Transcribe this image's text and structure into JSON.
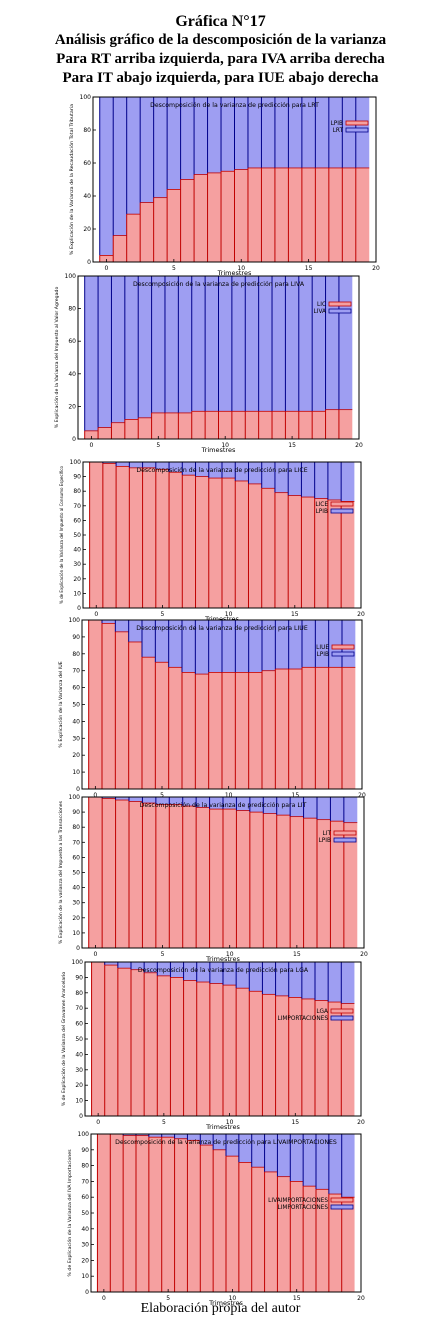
{
  "header": {
    "line1": "Gráfica N°17",
    "line2": "Análisis gráfico de la descomposición de la varianza",
    "line3": "Para RT arriba izquierda, para IVA arriba derecha",
    "line4": "Para IT abajo izquierda, para IUE abajo derecha"
  },
  "footer": "Elaboración propia del autor",
  "colors": {
    "red": "#f5a0a0",
    "blue": "#9e9ef2",
    "dark_red": "#c00000",
    "dark_blue": "#00008b"
  },
  "chart_data": [
    {
      "type": "bar",
      "title": "Descomposición de la varianza de predicción para LRT",
      "xlabel": "Trimestres",
      "ylabel": "% Explicación de la Varianza de la Recaudación Total Tributaria",
      "xlim": [
        -1,
        20
      ],
      "ylim": [
        0,
        100
      ],
      "xticks": [
        0,
        5,
        10,
        15,
        20
      ],
      "yticks": [
        0,
        20,
        40,
        60,
        80,
        100
      ],
      "legend_position": "top-right",
      "categories": [
        0,
        1,
        2,
        3,
        4,
        5,
        6,
        7,
        8,
        9,
        10,
        11,
        12,
        13,
        14,
        15,
        16,
        17,
        18,
        19
      ],
      "series": [
        {
          "name": "LPIB",
          "values": [
            4,
            16,
            29,
            36,
            39,
            44,
            50,
            53,
            54,
            55,
            56,
            57,
            57,
            57,
            57,
            57,
            57,
            57,
            57,
            57
          ]
        },
        {
          "name": "LRT",
          "values": [
            96,
            84,
            71,
            64,
            61,
            56,
            50,
            47,
            46,
            45,
            44,
            43,
            43,
            43,
            43,
            43,
            43,
            43,
            43,
            43
          ]
        }
      ]
    },
    {
      "type": "bar",
      "title": "Descomposición de la varianza de predicción para LIVA",
      "xlabel": "Trimestres",
      "ylabel": "% Explicación de la Varianza del Impuesto al Valor Agregado",
      "xlim": [
        -1,
        20
      ],
      "ylim": [
        0,
        100
      ],
      "xticks": [
        0,
        5,
        10,
        15,
        20
      ],
      "yticks": [
        0,
        20,
        40,
        60,
        80,
        100
      ],
      "legend_position": "top-right",
      "categories": [
        0,
        1,
        2,
        3,
        4,
        5,
        6,
        7,
        8,
        9,
        10,
        11,
        12,
        13,
        14,
        15,
        16,
        17,
        18,
        19
      ],
      "series": [
        {
          "name": "LIC",
          "values": [
            5,
            7,
            10,
            12,
            13,
            16,
            16,
            16,
            17,
            17,
            17,
            17,
            17,
            17,
            17,
            17,
            17,
            17,
            18,
            18
          ]
        },
        {
          "name": "LIVA",
          "values": [
            95,
            93,
            90,
            88,
            87,
            84,
            84,
            84,
            83,
            83,
            83,
            83,
            83,
            83,
            83,
            83,
            83,
            83,
            82,
            82
          ]
        }
      ]
    },
    {
      "type": "bar",
      "title": "Descomposición de la varianza de predicción para LICE",
      "xlabel": "Trimestres",
      "ylabel": "% de Explicación de la Varianza del Impuesto al Consumo Específico",
      "xlim": [
        -1,
        20
      ],
      "ylim": [
        0,
        100
      ],
      "xticks": [
        0,
        5,
        10,
        15,
        20
      ],
      "yticks": [
        0,
        10,
        20,
        30,
        40,
        50,
        60,
        70,
        80,
        90,
        100
      ],
      "legend_position": "top-right",
      "categories": [
        0,
        1,
        2,
        3,
        4,
        5,
        6,
        7,
        8,
        9,
        10,
        11,
        12,
        13,
        14,
        15,
        16,
        17,
        18,
        19
      ],
      "series": [
        {
          "name": "LICE",
          "values": [
            100,
            99,
            97,
            96,
            96,
            95,
            93,
            91,
            90,
            89,
            89,
            87,
            85,
            82,
            79,
            77,
            76,
            75,
            74,
            73
          ]
        },
        {
          "name": "LPIB",
          "values": [
            0,
            1,
            3,
            4,
            4,
            5,
            7,
            9,
            10,
            11,
            11,
            13,
            15,
            18,
            21,
            23,
            24,
            25,
            26,
            27
          ]
        }
      ]
    },
    {
      "type": "bar",
      "title": "Descomposición de la varianza de predicción para LIUE",
      "xlabel": "Trimestres",
      "ylabel": "% Explicación de la Varianza del IUE",
      "xlim": [
        -1,
        20
      ],
      "ylim": [
        0,
        100
      ],
      "xticks": [
        0,
        5,
        10,
        15,
        20
      ],
      "yticks": [
        0,
        10,
        20,
        30,
        40,
        50,
        60,
        70,
        80,
        90,
        100
      ],
      "legend_position": "top-right",
      "categories": [
        0,
        1,
        2,
        3,
        4,
        5,
        6,
        7,
        8,
        9,
        10,
        11,
        12,
        13,
        14,
        15,
        16,
        17,
        18,
        19
      ],
      "series": [
        {
          "name": "LIUE",
          "values": [
            100,
            98,
            93,
            87,
            78,
            75,
            72,
            69,
            68,
            69,
            69,
            69,
            69,
            70,
            71,
            71,
            72,
            72,
            72,
            72
          ]
        },
        {
          "name": "LPIB",
          "values": [
            0,
            2,
            7,
            13,
            22,
            25,
            28,
            31,
            32,
            31,
            31,
            31,
            31,
            30,
            29,
            29,
            28,
            28,
            28,
            28
          ]
        }
      ]
    },
    {
      "type": "bar",
      "title": "Descomposición de la varianza de predicción para LIT",
      "xlabel": "Trimestres",
      "ylabel": "% Explicación de la varianza del Impuesto a las Transacciones",
      "xlim": [
        -1,
        20
      ],
      "ylim": [
        0,
        100
      ],
      "xticks": [
        0,
        5,
        10,
        15,
        20
      ],
      "yticks": [
        0,
        10,
        20,
        30,
        40,
        50,
        60,
        70,
        80,
        90,
        100
      ],
      "legend_position": "top-right",
      "categories": [
        0,
        1,
        2,
        3,
        4,
        5,
        6,
        7,
        8,
        9,
        10,
        11,
        12,
        13,
        14,
        15,
        16,
        17,
        18,
        19
      ],
      "series": [
        {
          "name": "LIT",
          "values": [
            100,
            99,
            98,
            97,
            96,
            95,
            95,
            94,
            93,
            92,
            92,
            91,
            90,
            89,
            88,
            87,
            86,
            85,
            84,
            83
          ]
        },
        {
          "name": "LPIB",
          "values": [
            0,
            1,
            2,
            3,
            4,
            5,
            5,
            6,
            7,
            8,
            8,
            9,
            10,
            11,
            12,
            13,
            14,
            15,
            16,
            17
          ]
        }
      ]
    },
    {
      "type": "bar",
      "title": "Descomposición de la varianza de predicción para LGA",
      "xlabel": "Trimestres",
      "ylabel": "% de Explicación de la Varianza del Gravamen Arancelario",
      "xlim": [
        -1,
        20
      ],
      "ylim": [
        0,
        100
      ],
      "xticks": [
        0,
        5,
        10,
        15,
        20
      ],
      "yticks": [
        0,
        10,
        20,
        30,
        40,
        50,
        60,
        70,
        80,
        90,
        100
      ],
      "legend_position": "top-right",
      "categories": [
        0,
        1,
        2,
        3,
        4,
        5,
        6,
        7,
        8,
        9,
        10,
        11,
        12,
        13,
        14,
        15,
        16,
        17,
        18,
        19
      ],
      "series": [
        {
          "name": "LGA",
          "values": [
            100,
            98,
            96,
            95,
            93,
            91,
            90,
            88,
            87,
            86,
            85,
            83,
            81,
            79,
            78,
            77,
            76,
            75,
            74,
            73
          ]
        },
        {
          "name": "LIMPORTACIONES",
          "values": [
            0,
            2,
            4,
            5,
            7,
            9,
            10,
            12,
            13,
            14,
            15,
            17,
            19,
            21,
            22,
            23,
            24,
            25,
            26,
            27
          ]
        }
      ]
    },
    {
      "type": "bar",
      "title": "Descomposición de la varianza de predicción para LIVAIMPORTACIONES",
      "xlabel": "Trimestres",
      "ylabel": "% de Explicación de la Varianza del IVA Importaciones",
      "xlim": [
        -1,
        20
      ],
      "ylim": [
        0,
        100
      ],
      "xticks": [
        0,
        5,
        10,
        15,
        20
      ],
      "yticks": [
        0,
        10,
        20,
        30,
        40,
        50,
        60,
        70,
        80,
        90,
        100
      ],
      "legend_position": "top-right",
      "categories": [
        0,
        1,
        2,
        3,
        4,
        5,
        6,
        7,
        8,
        9,
        10,
        11,
        12,
        13,
        14,
        15,
        16,
        17,
        18,
        19
      ],
      "series": [
        {
          "name": "LIVAIMPORTACIONES",
          "values": [
            100,
            100,
            99,
            99,
            98,
            98,
            97,
            96,
            93,
            90,
            86,
            82,
            79,
            76,
            73,
            70,
            67,
            65,
            62,
            60
          ]
        },
        {
          "name": "LIMPORTACIONES",
          "values": [
            0,
            0,
            1,
            1,
            2,
            2,
            3,
            4,
            7,
            10,
            14,
            18,
            21,
            24,
            27,
            30,
            33,
            35,
            38,
            40
          ]
        }
      ]
    }
  ]
}
